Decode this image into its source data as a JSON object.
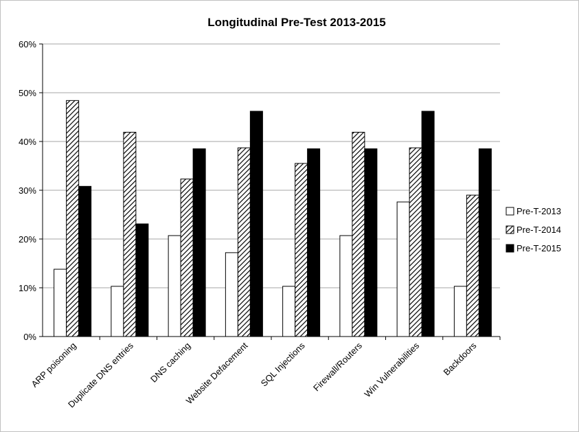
{
  "chart_data": {
    "type": "bar",
    "title": "Longitudinal Pre-Test 2013-2015",
    "xlabel": "",
    "ylabel": "",
    "ylim": [
      0,
      60
    ],
    "yticks": [
      "0%",
      "10%",
      "20%",
      "30%",
      "40%",
      "50%",
      "60%"
    ],
    "grid": true,
    "legend_position": "right",
    "categories": [
      "ARP poisoning",
      "Duplicate DNS entries",
      "DNS caching",
      "Website Defacement",
      "SQL Injections",
      "Firewall/Routers",
      "Win Vulnerabilities",
      "Backdoors"
    ],
    "series": [
      {
        "name": "Pre-T-2013",
        "fill": "white",
        "values": [
          13.8,
          10.3,
          20.7,
          17.2,
          10.3,
          20.7,
          27.6,
          10.3
        ]
      },
      {
        "name": "Pre-T-2014",
        "fill": "hatch",
        "values": [
          48.4,
          41.9,
          32.3,
          38.7,
          35.5,
          41.9,
          38.7,
          29.0
        ]
      },
      {
        "name": "Pre-T-2015",
        "fill": "black",
        "values": [
          30.8,
          23.1,
          38.5,
          46.2,
          38.5,
          38.5,
          46.2,
          38.5
        ]
      }
    ]
  }
}
